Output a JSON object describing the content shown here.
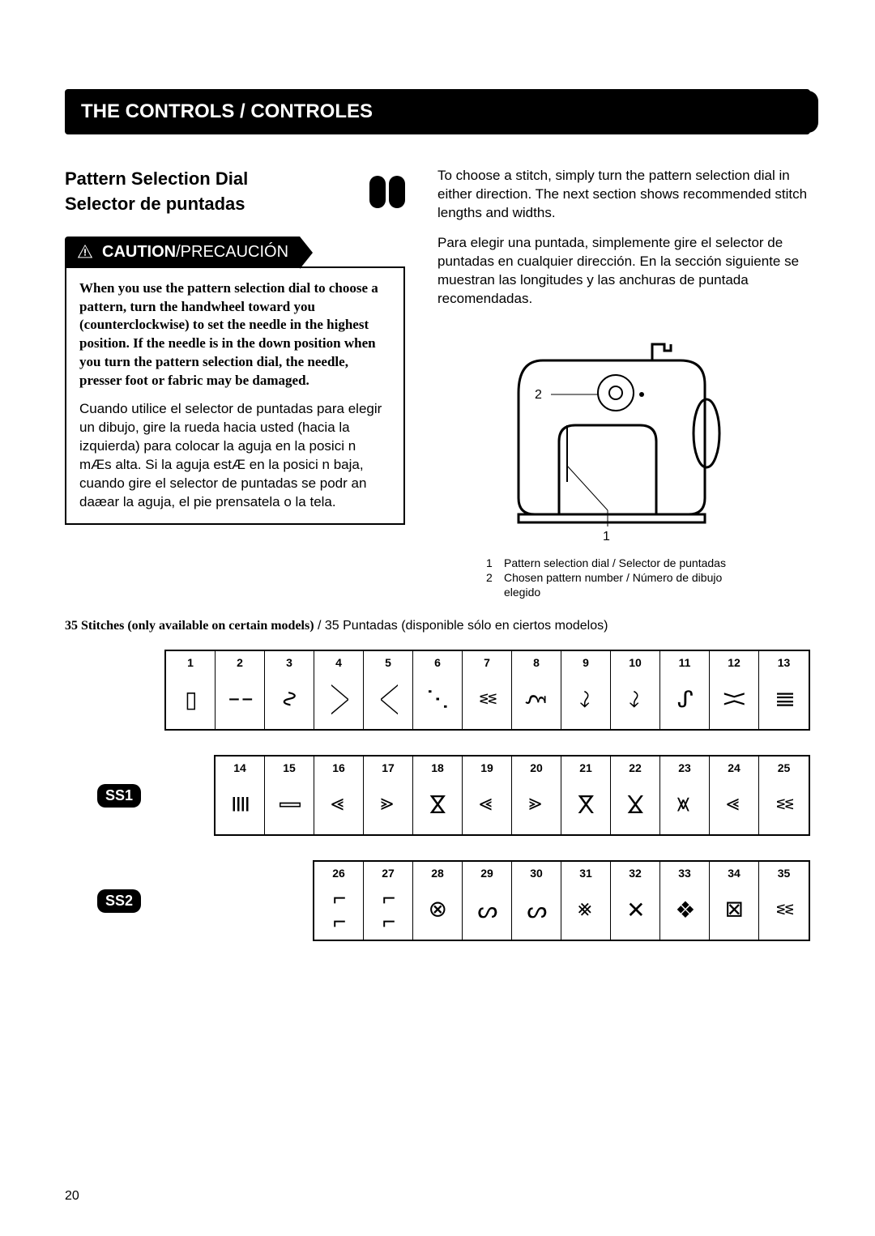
{
  "header": {
    "title": "THE CONTROLS / CONTROLES"
  },
  "subtitle": {
    "line1": "Pattern Selection Dial",
    "line2": "Selector de puntadas"
  },
  "caution": {
    "label_en": "CAUTION",
    "label_sep": "/",
    "label_es": "PRECAUCIÓN",
    "text_en": "When you use the pattern selection dial to choose a pattern, turn the handwheel toward you (counterclockwise) to set the needle in the highest position. If the needle is in the down position when you turn the pattern selection dial, the needle, presser foot or fabric may be damaged.",
    "text_es": "Cuando utilice el selector de puntadas para elegir un dibujo, gire la rueda hacia usted (hacia la izquierda) para colocar la aguja en la posici n mÆs alta. Si la aguja estÆ en la posici n baja, cuando gire el selector de puntadas se podr an daæar la aguja, el pie prensatela o la tela."
  },
  "right": {
    "p1": "To choose a stitch, simply turn the pattern selection dial in either direction. The next section shows recommended stitch lengths and widths.",
    "p2": "Para elegir una puntada, simplemente gire el selector de puntadas en cualquier dirección. En la sección siguiente se muestran las longitudes y las anchuras de puntada recomendadas."
  },
  "figure": {
    "callout1": "1",
    "callout2": "2",
    "legend1": "Pattern selection dial / Selector de puntadas",
    "legend2": "Chosen pattern number / Número de dibujo elegido"
  },
  "stitches": {
    "heading_en": "35 Stitches (only available on certain models)",
    "heading_sep": " / ",
    "heading_es": "35 Puntadas (disponible sólo en ciertos modelos)",
    "row_badges": [
      "",
      "SS1",
      "SS2"
    ],
    "rows": [
      {
        "start": 1,
        "cells": [
          {
            "n": "1",
            "g": "▯"
          },
          {
            "n": "2",
            "g": "╎"
          },
          {
            "n": "3",
            "g": "∿"
          },
          {
            "n": "4",
            "g": "⟋⟍"
          },
          {
            "n": "5",
            "g": "⟍⟋"
          },
          {
            "n": "6",
            "g": "⋰"
          },
          {
            "n": "7",
            "g": "ʬ"
          },
          {
            "n": "8",
            "g": "ξ"
          },
          {
            "n": "9",
            "g": "⤳"
          },
          {
            "n": "10",
            "g": "⤳"
          },
          {
            "n": "11",
            "g": "ᔑ"
          },
          {
            "n": "12",
            "g": "⟩⟨"
          },
          {
            "n": "13",
            "g": "ǁǁ"
          }
        ]
      },
      {
        "start": 14,
        "cells": [
          {
            "n": "14",
            "g": "≣"
          },
          {
            "n": "15",
            "g": "⫿"
          },
          {
            "n": "16",
            "g": "⩔"
          },
          {
            "n": "17",
            "g": "⩓"
          },
          {
            "n": "18",
            "g": "⋈"
          },
          {
            "n": "19",
            "g": "⩔"
          },
          {
            "n": "20",
            "g": "⩓"
          },
          {
            "n": "21",
            "g": "⋉"
          },
          {
            "n": "22",
            "g": "⋊"
          },
          {
            "n": "23",
            "g": "⪤"
          },
          {
            "n": "24",
            "g": "⩔"
          },
          {
            "n": "25",
            "g": "ʬ"
          }
        ]
      },
      {
        "start": 26,
        "cells": [
          {
            "n": "26",
            "g": "⌐⌐"
          },
          {
            "n": "27",
            "g": "⌐⌐"
          },
          {
            "n": "28",
            "g": "⊗"
          },
          {
            "n": "29",
            "g": "ᔕ"
          },
          {
            "n": "30",
            "g": "ᔕ"
          },
          {
            "n": "31",
            "g": "⨳"
          },
          {
            "n": "32",
            "g": "✕"
          },
          {
            "n": "33",
            "g": "❖"
          },
          {
            "n": "34",
            "g": "⊠"
          },
          {
            "n": "35",
            "g": "ʬ"
          }
        ]
      }
    ]
  },
  "page_number": "20",
  "colors": {
    "bg": "#ffffff",
    "ink": "#000000"
  }
}
